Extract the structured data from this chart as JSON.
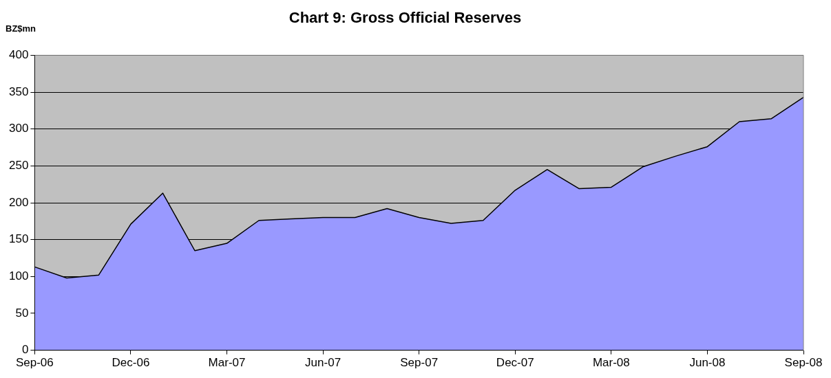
{
  "chart_data": {
    "type": "area",
    "title": "Chart 9: Gross Official Reserves",
    "ylabel": "BZ$mn",
    "categories": [
      "Sep-06",
      null,
      null,
      "Dec-06",
      null,
      null,
      "Mar-07",
      null,
      null,
      "Jun-07",
      null,
      null,
      "Sep-07",
      null,
      null,
      "Dec-07",
      null,
      null,
      "Mar-08",
      null,
      null,
      "Jun-08",
      null,
      null,
      "Sep-08"
    ],
    "series": [
      {
        "color": "#9999ff",
        "values": [
          113,
          98,
          102,
          171,
          213,
          135,
          145,
          176,
          178,
          180,
          180,
          192,
          180,
          172,
          176,
          217,
          245,
          219,
          221,
          249,
          263,
          276,
          310,
          314,
          343
        ]
      }
    ],
    "ylim": [
      0,
      400
    ],
    "yticks": [
      0,
      50,
      100,
      150,
      200,
      250,
      300,
      350,
      400
    ],
    "grid": "y",
    "legend": false,
    "marker": "none",
    "line_style": "solid"
  }
}
